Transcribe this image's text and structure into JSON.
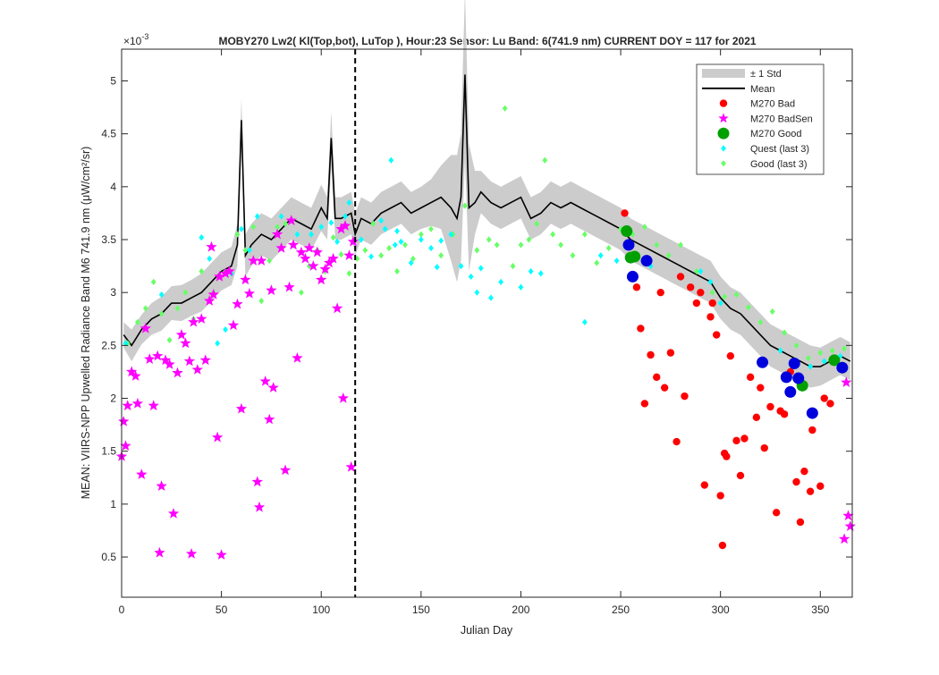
{
  "figure": {
    "title": "MOBY270   Lw2( Kl(Top,bot), LuTop ),   Hour:23 Sensor: Lu Band: 6(741.9 nm)   CURRENT DOY = 117 for 2021",
    "exponent_base": "×10",
    "exponent_power": "-3"
  },
  "chart_data": {
    "type": "scatter",
    "title": "MOBY270   Lw2( Kl(Top,bot), LuTop ),   Hour:23 Sensor: Lu Band: 6(741.9 nm)   CURRENT DOY = 117 for 2021",
    "xlabel": "Julian Day",
    "ylabel": "MEAN: VIIRS-NPP Upwelled Radiance Band M6 741.9 nm (μW/cm²/sr)",
    "xlim": [
      0,
      366
    ],
    "ylim": [
      0.12,
      5.3
    ],
    "y_scale_note": "×10^-3",
    "x_ticks": [
      "0",
      "50",
      "100",
      "150",
      "200",
      "250",
      "300",
      "350"
    ],
    "y_ticks": [
      "0.5",
      "1",
      "1.5",
      "2",
      "2.5",
      "3",
      "3.5",
      "4",
      "4.5",
      "5"
    ],
    "current_doy": 117,
    "grid": false,
    "legend_position": "top-right",
    "legend": [
      {
        "label": "± 1 Std",
        "color": "#cccccc"
      },
      {
        "label": "Mean",
        "color": "#000000"
      },
      {
        "label": "M270 Bad",
        "color": "#ff0000"
      },
      {
        "label": "M270 BadSen",
        "color": "#ff00ff"
      },
      {
        "label": "M270 Good",
        "color": "#00a000"
      },
      {
        "label": "Quest (last 3)",
        "color": "#00ffff"
      },
      {
        "label": "Good (last 3)",
        "color": "#66ff66"
      }
    ],
    "series": [
      {
        "name": "Mean",
        "color": "#000000",
        "x": [
          1,
          5,
          10,
          15,
          20,
          25,
          30,
          35,
          40,
          45,
          50,
          55,
          58,
          60,
          62,
          65,
          70,
          75,
          80,
          85,
          90,
          95,
          100,
          103,
          105,
          107,
          110,
          115,
          117,
          120,
          125,
          130,
          135,
          140,
          145,
          150,
          155,
          160,
          165,
          168,
          170,
          172,
          174,
          177,
          180,
          185,
          190,
          195,
          200,
          205,
          210,
          215,
          220,
          225,
          230,
          235,
          240,
          245,
          250,
          255,
          260,
          265,
          270,
          275,
          280,
          285,
          290,
          295,
          300,
          305,
          310,
          315,
          320,
          325,
          330,
          335,
          340,
          345,
          350,
          355,
          360,
          365
        ],
        "y": [
          2.6,
          2.5,
          2.65,
          2.75,
          2.8,
          2.9,
          2.9,
          2.95,
          3.0,
          3.1,
          3.2,
          3.25,
          3.45,
          4.63,
          3.35,
          3.45,
          3.55,
          3.5,
          3.6,
          3.7,
          3.65,
          3.6,
          3.8,
          3.7,
          4.46,
          3.7,
          3.7,
          3.75,
          3.55,
          3.7,
          3.65,
          3.75,
          3.8,
          3.85,
          3.75,
          3.8,
          3.85,
          3.9,
          3.8,
          3.7,
          3.9,
          5.06,
          3.8,
          3.85,
          3.95,
          3.85,
          3.8,
          3.85,
          3.9,
          3.7,
          3.75,
          3.85,
          3.8,
          3.85,
          3.8,
          3.75,
          3.7,
          3.65,
          3.6,
          3.5,
          3.45,
          3.4,
          3.35,
          3.3,
          3.25,
          3.2,
          3.15,
          3.1,
          2.95,
          2.85,
          2.8,
          2.7,
          2.6,
          2.5,
          2.45,
          2.4,
          2.35,
          2.3,
          2.3,
          2.35,
          2.4,
          2.35
        ],
        "std": [
          0.12,
          0.15,
          0.14,
          0.15,
          0.16,
          0.16,
          0.17,
          0.17,
          0.18,
          0.18,
          0.18,
          0.18,
          0.2,
          0.2,
          0.2,
          0.2,
          0.2,
          0.2,
          0.2,
          0.2,
          0.2,
          0.2,
          0.22,
          0.2,
          0.25,
          0.2,
          0.2,
          0.2,
          0.2,
          0.2,
          0.2,
          0.2,
          0.2,
          0.2,
          0.2,
          0.2,
          0.22,
          0.3,
          0.5,
          0.6,
          0.6,
          0.8,
          0.6,
          0.3,
          0.2,
          0.2,
          0.2,
          0.2,
          0.2,
          0.2,
          0.2,
          0.2,
          0.2,
          0.2,
          0.2,
          0.2,
          0.2,
          0.2,
          0.2,
          0.2,
          0.2,
          0.2,
          0.2,
          0.2,
          0.2,
          0.2,
          0.2,
          0.2,
          0.2,
          0.2,
          0.2,
          0.2,
          0.2,
          0.2,
          0.2,
          0.2,
          0.2,
          0.2,
          0.18,
          0.18,
          0.18,
          0.18
        ]
      },
      {
        "name": "M270 Bad",
        "color": "#ff0000",
        "marker": "dot",
        "x": [
          252,
          258,
          260,
          262,
          265,
          268,
          270,
          272,
          275,
          278,
          280,
          282,
          285,
          288,
          290,
          292,
          295,
          296,
          298,
          300,
          301,
          302,
          303,
          305,
          308,
          310,
          312,
          315,
          318,
          320,
          322,
          325,
          328,
          330,
          332,
          335,
          338,
          340,
          342,
          345,
          346,
          350,
          352,
          355
        ],
        "y": [
          3.75,
          3.05,
          2.66,
          1.95,
          2.41,
          2.2,
          3.0,
          2.1,
          2.43,
          1.59,
          3.15,
          2.02,
          3.05,
          2.9,
          3.0,
          1.18,
          2.77,
          2.9,
          2.6,
          1.08,
          0.61,
          1.48,
          1.45,
          2.4,
          1.6,
          1.27,
          1.62,
          2.2,
          1.82,
          2.1,
          1.53,
          1.92,
          0.92,
          1.88,
          1.85,
          2.25,
          1.21,
          0.83,
          1.31,
          1.12,
          1.7,
          1.17,
          2.0,
          1.95
        ]
      },
      {
        "name": "M270 BadSen",
        "color": "#ff00ff",
        "marker": "star",
        "x": [
          0,
          1,
          2,
          3,
          5,
          7,
          8,
          10,
          12,
          14,
          16,
          18,
          19,
          20,
          22,
          24,
          26,
          28,
          30,
          32,
          34,
          35,
          36,
          38,
          40,
          42,
          44,
          45,
          46,
          48,
          49,
          50,
          52,
          54,
          56,
          58,
          60,
          62,
          64,
          66,
          68,
          69,
          70,
          72,
          74,
          75,
          76,
          78,
          80,
          82,
          84,
          85,
          86,
          88,
          90,
          92,
          94,
          96,
          98,
          100,
          102,
          104,
          106,
          108,
          110,
          111,
          112,
          114,
          115,
          116,
          362,
          363,
          364,
          365
        ],
        "y": [
          1.45,
          1.78,
          1.55,
          1.93,
          2.25,
          2.21,
          1.95,
          1.28,
          2.66,
          2.37,
          1.93,
          2.4,
          0.54,
          1.17,
          2.36,
          2.32,
          0.91,
          2.24,
          2.6,
          2.52,
          2.35,
          0.53,
          2.72,
          2.27,
          2.75,
          2.36,
          2.92,
          3.43,
          2.98,
          1.63,
          3.15,
          0.52,
          3.18,
          3.2,
          2.69,
          2.89,
          1.9,
          3.12,
          2.99,
          3.3,
          1.21,
          0.97,
          3.3,
          2.16,
          1.8,
          3.02,
          2.1,
          3.55,
          3.42,
          1.32,
          3.05,
          3.68,
          3.45,
          2.38,
          3.38,
          3.32,
          3.42,
          3.25,
          3.38,
          3.12,
          3.22,
          3.28,
          3.32,
          2.85,
          3.6,
          2.0,
          3.63,
          3.35,
          1.35,
          3.48,
          0.67,
          2.15,
          0.89,
          0.79
        ]
      },
      {
        "name": "M270 Good",
        "color": "#00a000",
        "marker": "bigdot",
        "x": [
          253,
          255,
          257,
          341,
          357
        ],
        "y": [
          3.58,
          3.33,
          3.34,
          2.12,
          2.36
        ]
      },
      {
        "name": "M270 Good (blue)",
        "color": "#0000dd",
        "marker": "bigdot",
        "x": [
          254,
          256,
          263,
          321,
          333,
          335,
          337,
          339,
          346,
          361
        ],
        "y": [
          3.45,
          3.15,
          3.3,
          2.34,
          2.2,
          2.06,
          2.33,
          2.19,
          1.86,
          2.29
        ]
      },
      {
        "name": "Quest (last 3)",
        "color": "#00ffff",
        "marker": "diamond",
        "x": [
          2,
          20,
          40,
          44,
          48,
          52,
          55,
          60,
          64,
          68,
          80,
          88,
          95,
          100,
          105,
          108,
          112,
          114,
          116,
          120,
          125,
          130,
          132,
          135,
          137,
          138,
          140,
          145,
          150,
          155,
          158,
          160,
          165,
          170,
          175,
          178,
          180,
          185,
          190,
          200,
          205,
          210,
          232,
          240,
          248,
          265,
          290,
          295,
          300,
          330,
          345,
          352,
          360
        ],
        "y": [
          2.52,
          2.98,
          3.52,
          3.32,
          2.52,
          2.65,
          3.18,
          3.6,
          3.4,
          3.72,
          3.72,
          3.55,
          3.55,
          3.62,
          3.66,
          3.48,
          3.72,
          3.85,
          3.48,
          3.5,
          3.34,
          3.68,
          3.6,
          4.25,
          3.45,
          3.58,
          3.48,
          3.28,
          3.5,
          3.42,
          3.24,
          3.49,
          3.55,
          3.25,
          3.15,
          3.0,
          3.23,
          2.95,
          3.1,
          3.05,
          3.2,
          3.18,
          2.72,
          3.35,
          3.3,
          3.25,
          3.2,
          3.1,
          2.9,
          2.45,
          2.3,
          2.35,
          2.4
        ]
      },
      {
        "name": "Good (last 3)",
        "color": "#66ff66",
        "marker": "diamond",
        "x": [
          3,
          8,
          12,
          16,
          20,
          24,
          28,
          32,
          36,
          40,
          46,
          52,
          58,
          62,
          66,
          70,
          74,
          78,
          82,
          86,
          90,
          94,
          98,
          102,
          106,
          110,
          114,
          118,
          122,
          126,
          130,
          134,
          138,
          142,
          146,
          150,
          155,
          160,
          166,
          172,
          178,
          184,
          188,
          192,
          196,
          200,
          204,
          208,
          212,
          216,
          220,
          226,
          232,
          238,
          244,
          250,
          256,
          262,
          268,
          274,
          280,
          288,
          296,
          302,
          308,
          314,
          320,
          326,
          332,
          338,
          344,
          350,
          356,
          362
        ],
        "y": [
          2.52,
          2.72,
          2.85,
          3.1,
          2.8,
          2.55,
          2.85,
          3.0,
          2.75,
          3.2,
          3.0,
          3.2,
          3.55,
          3.4,
          3.62,
          2.92,
          3.3,
          3.62,
          3.65,
          3.45,
          3.0,
          3.25,
          3.4,
          3.2,
          3.52,
          3.36,
          3.18,
          3.32,
          3.4,
          3.65,
          3.35,
          3.42,
          3.2,
          3.45,
          3.32,
          3.55,
          3.6,
          3.35,
          3.55,
          3.82,
          3.4,
          3.5,
          3.45,
          4.74,
          3.25,
          3.45,
          3.5,
          3.65,
          4.25,
          3.55,
          3.45,
          3.35,
          3.55,
          3.28,
          3.42,
          3.6,
          3.55,
          3.62,
          3.45,
          3.35,
          3.45,
          3.2,
          3.0,
          2.96,
          2.98,
          2.86,
          2.72,
          2.82,
          2.62,
          2.5,
          2.38,
          2.43,
          2.45,
          2.47
        ]
      }
    ]
  }
}
